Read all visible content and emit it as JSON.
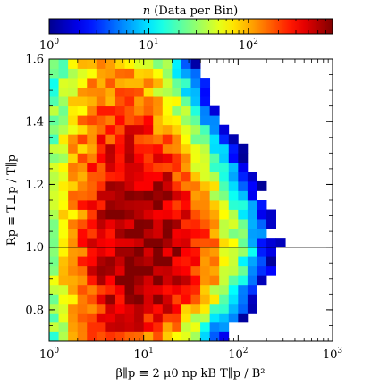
{
  "chart_data": {
    "type": "heatmap",
    "colorbar": {
      "label": "n (Data per Bin)",
      "scale": "log",
      "range": [
        1,
        700
      ],
      "tick_labels": [
        "10^0",
        "10^1",
        "10^2"
      ],
      "colormap": [
        "#00008f",
        "#0000ff",
        "#007fff",
        "#00ffff",
        "#7fff7f",
        "#ffff00",
        "#ff7f00",
        "#ff0000",
        "#800000"
      ]
    },
    "x": {
      "label": "β∥p ≡ 2 μ0 np kB T∥p / B²",
      "scale": "log",
      "range": [
        1,
        1000
      ],
      "tick_labels": [
        "10^0",
        "10^1",
        "10^2",
        "10^3"
      ]
    },
    "y": {
      "label": "Rp ≡ T⊥p / T∥p",
      "scale": "linear",
      "range": [
        0.7,
        1.6
      ],
      "tick_labels": [
        "0.8",
        "1.0",
        "1.2",
        "1.4",
        "1.6"
      ]
    },
    "reference_line": {
      "y": 1.0,
      "color": "#000000"
    },
    "density_model": {
      "peak_count": 700,
      "peak_beta": 10,
      "peak_ratio": 1.0,
      "bins_x": 30,
      "bins_y": 30
    }
  }
}
